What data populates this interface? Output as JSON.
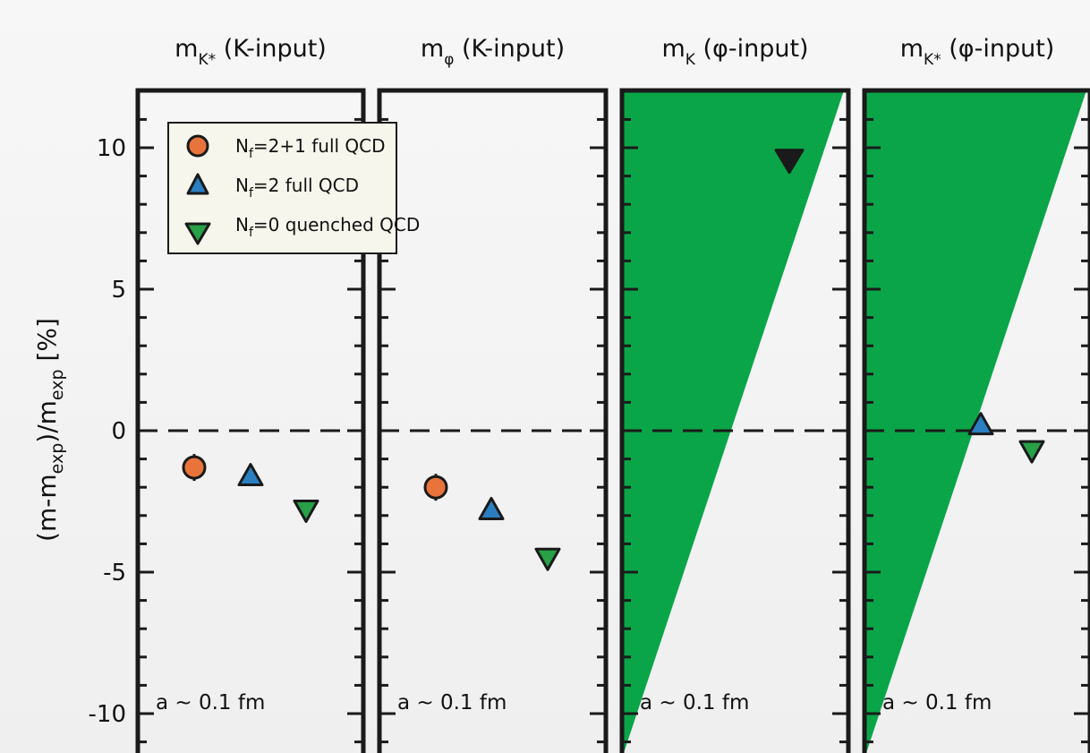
{
  "chart_data": {
    "type": "scatter",
    "ylabel": "(m-m_exp)/m_exp [%]",
    "ylim": [
      -11,
      12
    ],
    "yticks": [
      10,
      5,
      0,
      -5,
      -10
    ],
    "grid": false,
    "legend_placement": "top-left of first panel",
    "legend": [
      {
        "label": "N_f=2+1 full QCD",
        "marker": "circle",
        "color": "#e8743b"
      },
      {
        "label": "N_f=2 full QCD",
        "marker": "triangle-up",
        "color": "#2b7fc0"
      },
      {
        "label": "N_f=0 quenched QCD",
        "marker": "triangle-down",
        "color": "#27a048"
      }
    ],
    "panels": [
      {
        "title": "m_K* (K-input)",
        "note": "a ~ 0.1 fm",
        "band": false,
        "points": [
          {
            "series": "N_f=2+1 full QCD",
            "y": -1.3
          },
          {
            "series": "N_f=2 full QCD",
            "y": -1.6
          },
          {
            "series": "N_f=0 quenched QCD",
            "y": -2.8
          }
        ]
      },
      {
        "title": "m_φ (K-input)",
        "note": "a ~ 0.1 fm",
        "band": false,
        "points": [
          {
            "series": "N_f=2+1 full QCD",
            "y": -2.0
          },
          {
            "series": "N_f=2 full QCD",
            "y": -2.8
          },
          {
            "series": "N_f=0 quenched QCD",
            "y": -4.5
          }
        ]
      },
      {
        "title": "m_K (φ-input)",
        "note": "a ~ 0.1 fm",
        "band": true,
        "points": [
          {
            "series": "N_f=0 quenched QCD",
            "y": 9.6,
            "fill": "#1a1a1a"
          }
        ]
      },
      {
        "title": "m_K* (φ-input)",
        "note": "a ~ 0.1 fm",
        "band": true,
        "points": [
          {
            "series": "N_f=2 full QCD",
            "y": 0.2
          },
          {
            "series": "N_f=0 quenched QCD",
            "y": -0.7
          }
        ]
      }
    ]
  },
  "colors": {
    "band": "#0aa548",
    "frame": "#1a1a1a",
    "legend_bg": "#f7f6ec"
  },
  "text": {
    "ylabel_main": "(m-m",
    "ylabel_sub1": "exp",
    "ylabel_mid": ")/m",
    "ylabel_sub2": "exp",
    "ylabel_tail": " [%]",
    "titles": [
      {
        "m": "m",
        "sub": "K*",
        "rest": " (K-input)"
      },
      {
        "m": "m",
        "sub": "φ",
        "rest": " (K-input)"
      },
      {
        "m": "m",
        "sub": "K",
        "rest": " (φ-input)"
      },
      {
        "m": "m",
        "sub": "K*",
        "rest": " (φ-input)"
      }
    ],
    "legend": [
      {
        "n": "N",
        "sub": "f",
        "rest": "=2+1   full QCD"
      },
      {
        "n": "N",
        "sub": "f",
        "rest": "=2    full QCD"
      },
      {
        "n": "N",
        "sub": "f",
        "rest": "=0   quenched QCD"
      }
    ]
  }
}
